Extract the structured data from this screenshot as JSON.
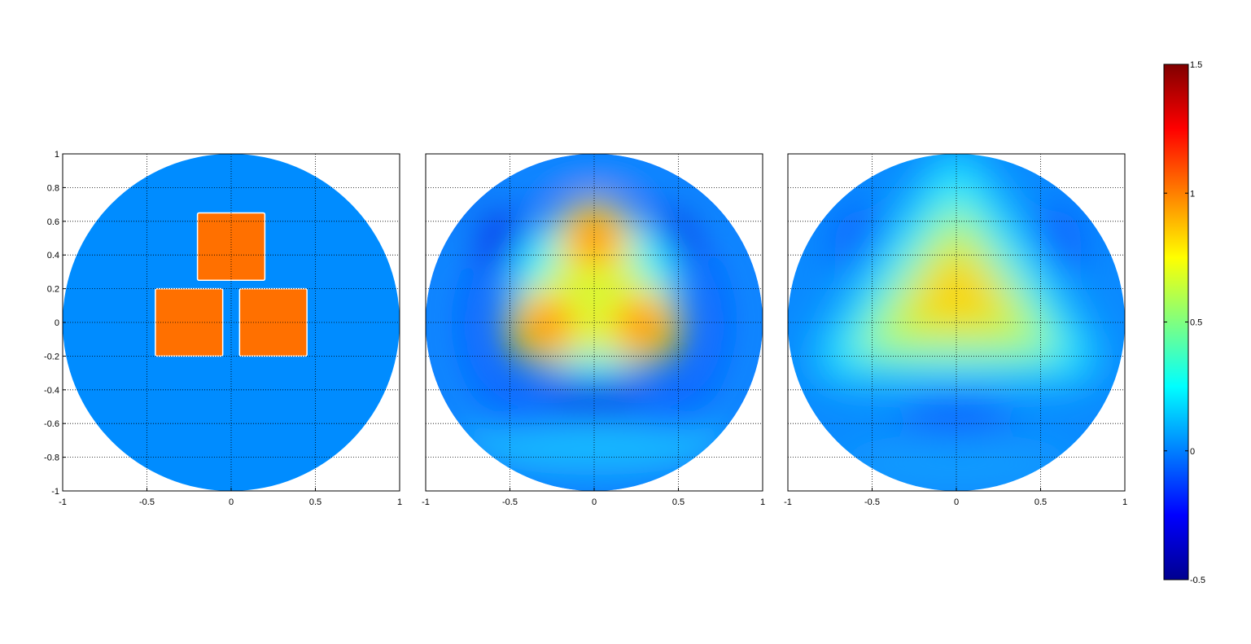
{
  "figure": {
    "background": "#ffffff",
    "colormap": "jet"
  },
  "chart_data": [
    {
      "type": "heatmap",
      "title": "",
      "xlabel": "",
      "ylabel": "",
      "xlim": [
        -1,
        1
      ],
      "ylim": [
        -1,
        1
      ],
      "grid": true,
      "domain": "unit disk",
      "xticks": [
        -1,
        -0.5,
        0,
        0.5,
        1
      ],
      "yticks": [
        -1,
        -0.8,
        -0.6,
        -0.4,
        -0.2,
        0,
        0.2,
        0.4,
        0.6,
        0.8,
        1
      ],
      "xtick_labels": [
        "-1",
        "-0.5",
        "0",
        "0.5",
        "1"
      ],
      "ytick_labels": [
        "-1",
        "-0.8",
        "-0.6",
        "-0.4",
        "-0.2",
        "0",
        "0.2",
        "0.4",
        "0.6",
        "0.8",
        "1"
      ],
      "background_value": 0,
      "inclusions": [
        {
          "shape": "square",
          "x": [
            -0.2,
            0.2
          ],
          "y": [
            0.25,
            0.65
          ],
          "value": 1
        },
        {
          "shape": "square",
          "x": [
            -0.45,
            -0.05
          ],
          "y": [
            -0.2,
            0.2
          ],
          "value": 1
        },
        {
          "shape": "square",
          "x": [
            0.05,
            0.45
          ],
          "y": [
            -0.2,
            0.2
          ],
          "value": 1
        }
      ]
    },
    {
      "type": "heatmap",
      "title": "",
      "xlabel": "",
      "ylabel": "",
      "xlim": [
        -1,
        1
      ],
      "ylim": [
        -1,
        1
      ],
      "grid": true,
      "domain": "unit disk",
      "xticks": [
        -1,
        -0.5,
        0,
        0.5,
        1
      ],
      "xtick_labels": [
        "-1",
        "-0.5",
        "0",
        "0.5",
        "1"
      ],
      "approx_peaks": [
        {
          "x": 0,
          "y": 0.5,
          "value": 1.1
        },
        {
          "x": -0.28,
          "y": -0.02,
          "value": 1.05
        },
        {
          "x": 0.28,
          "y": -0.02,
          "value": 1.05
        }
      ],
      "approx_center_value": 0.65,
      "approx_minimum": {
        "x": 0,
        "y": -0.42,
        "value": -0.18
      }
    },
    {
      "type": "heatmap",
      "title": "",
      "xlabel": "",
      "ylabel": "",
      "xlim": [
        -1,
        1
      ],
      "ylim": [
        -1,
        1
      ],
      "grid": true,
      "domain": "unit disk",
      "xticks": [
        -1,
        -0.5,
        0,
        0.5,
        1
      ],
      "xtick_labels": [
        "-1",
        "-0.5",
        "0",
        "0.5",
        "1"
      ],
      "approx_peak": {
        "x": 0.02,
        "y": 0.15,
        "value": 0.9
      },
      "shape": "rounded triangle",
      "approx_background_value": 0.05
    }
  ],
  "colorbar": {
    "min": -0.5,
    "max": 1.5,
    "ticks": [
      -0.5,
      0,
      0.5,
      1,
      1.5
    ],
    "tick_labels": [
      "-0.5",
      "0",
      "0.5",
      "1",
      "1.5"
    ]
  }
}
